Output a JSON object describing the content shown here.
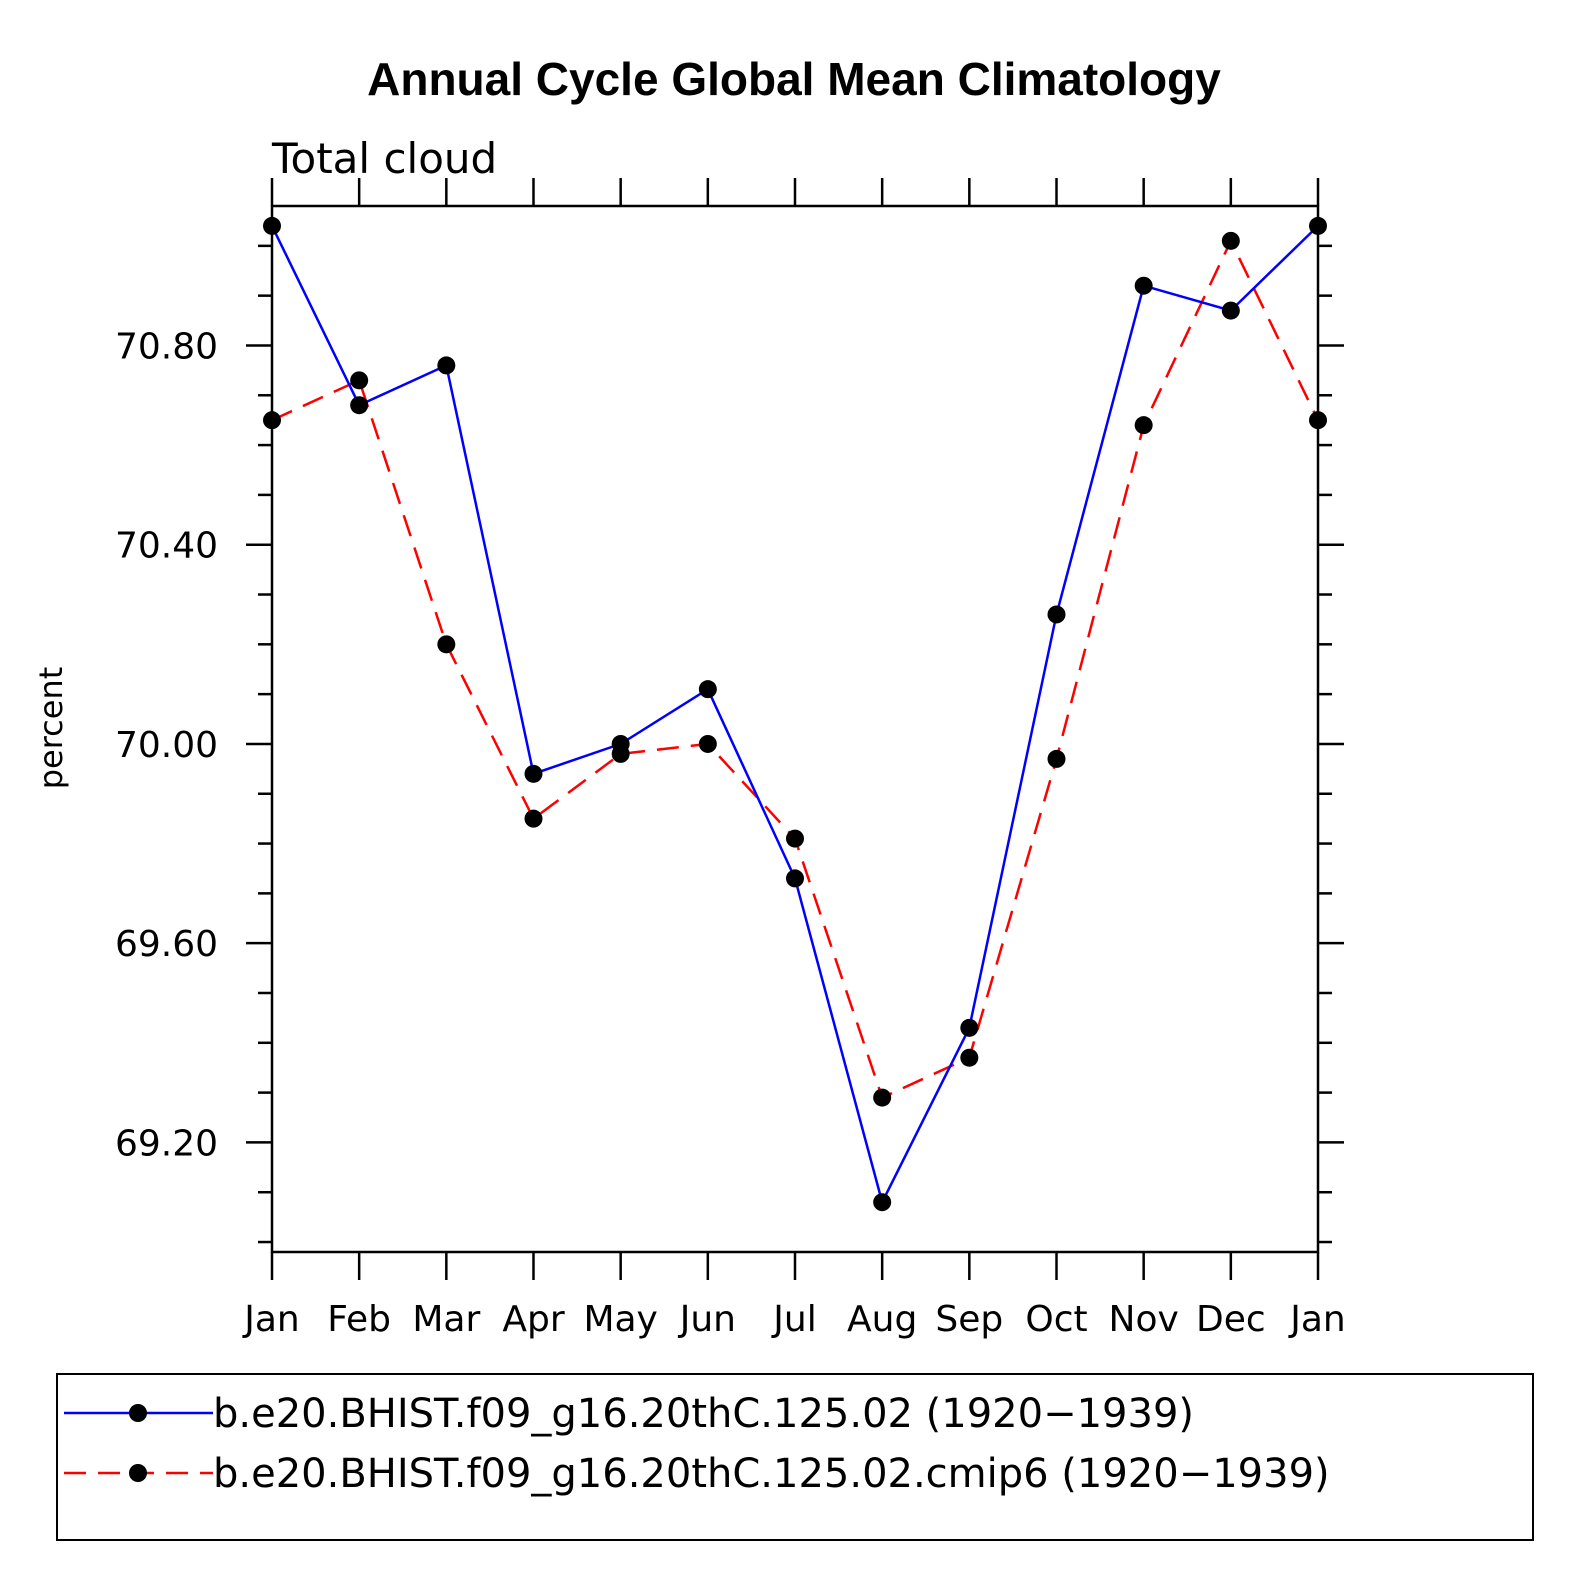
{
  "chart_data": {
    "type": "line",
    "title": "Annual Cycle Global Mean Climatology",
    "subtitle": "Total cloud",
    "xlabel": "",
    "ylabel": "percent",
    "categories": [
      "Jan",
      "Feb",
      "Mar",
      "Apr",
      "May",
      "Jun",
      "Jul",
      "Aug",
      "Sep",
      "Oct",
      "Nov",
      "Dec",
      "Jan"
    ],
    "ylim": [
      68.98,
      71.08
    ],
    "yticks": [
      69.2,
      69.6,
      70.0,
      70.4,
      70.8
    ],
    "ytick_labels": [
      "69.20",
      "69.60",
      "70.00",
      "70.40",
      "70.80"
    ],
    "yminor_step": 0.1,
    "grid": false,
    "legend_position": "bottom",
    "series": [
      {
        "name": "b.e20.BHIST.f09_g16.20thC.125.02 (1920−1939)",
        "color": "#0000ff",
        "dash": "solid",
        "values": [
          71.04,
          70.68,
          70.76,
          69.94,
          70.0,
          70.11,
          69.73,
          69.08,
          69.43,
          70.26,
          70.92,
          70.87,
          71.04
        ]
      },
      {
        "name": "b.e20.BHIST.f09_g16.20thC.125.02.cmip6 (1920−1939)",
        "color": "#ff0000",
        "dash": "dashed",
        "values": [
          70.65,
          70.73,
          70.2,
          69.85,
          69.98,
          70.0,
          69.81,
          69.29,
          69.37,
          69.97,
          70.64,
          71.01,
          70.65
        ]
      }
    ],
    "marker_color": "#000000"
  }
}
